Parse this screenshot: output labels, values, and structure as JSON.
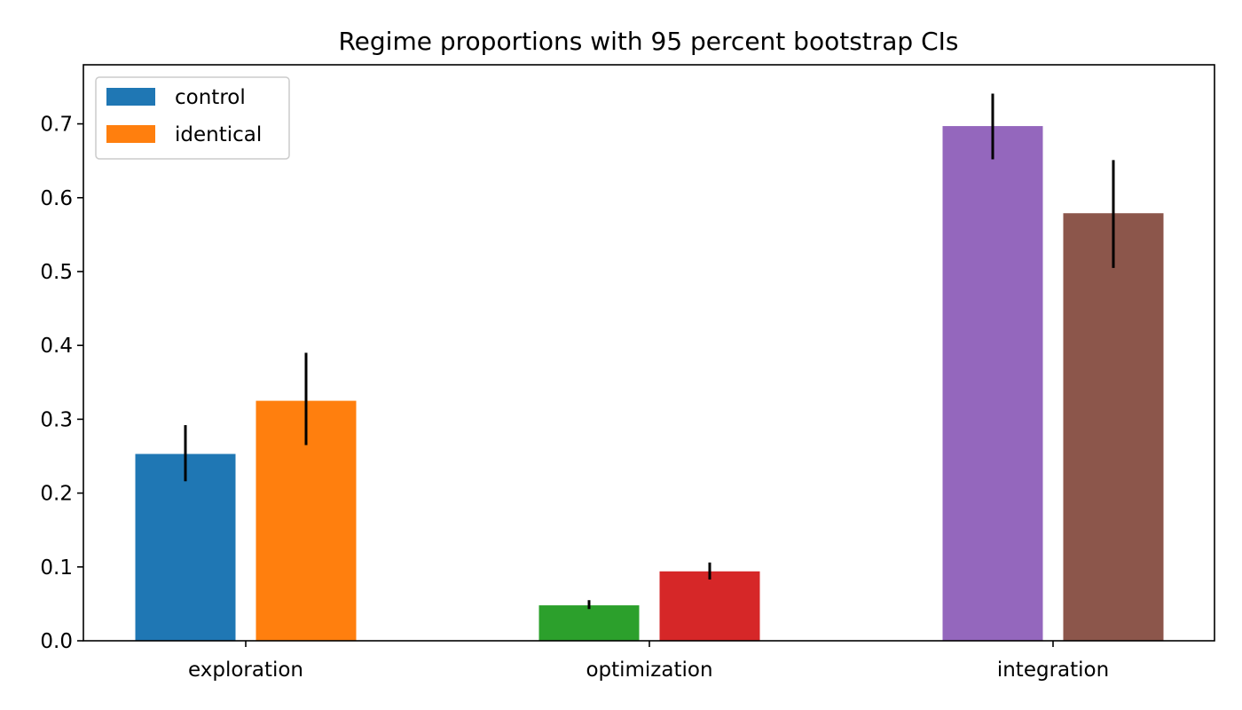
{
  "chart_data": {
    "type": "bar",
    "title": "Regime proportions with 95 percent bootstrap CIs",
    "xlabel": "",
    "ylabel": "",
    "categories": [
      "exploration",
      "optimization",
      "integration"
    ],
    "ylim": [
      0,
      0.78
    ],
    "yticks": [
      {
        "value": 0.0,
        "label": "0.0"
      },
      {
        "value": 0.1,
        "label": "0.1"
      },
      {
        "value": 0.2,
        "label": "0.2"
      },
      {
        "value": 0.3,
        "label": "0.3"
      },
      {
        "value": 0.4,
        "label": "0.4"
      },
      {
        "value": 0.5,
        "label": "0.5"
      },
      {
        "value": 0.6,
        "label": "0.6"
      },
      {
        "value": 0.7,
        "label": "0.7"
      }
    ],
    "grid": false,
    "legend": {
      "placement": "top-left",
      "entries": [
        {
          "label": "control",
          "color": "#1f77b4"
        },
        {
          "label": "identical",
          "color": "#ff7f0e"
        }
      ]
    },
    "series": [
      {
        "name": "control",
        "values": [
          0.253,
          0.048,
          0.697
        ],
        "ci_low": [
          0.216,
          0.043,
          0.652
        ],
        "ci_high": [
          0.292,
          0.055,
          0.741
        ],
        "colors": [
          "#1f77b4",
          "#2ca02c",
          "#9467bd"
        ]
      },
      {
        "name": "identical",
        "values": [
          0.325,
          0.094,
          0.579
        ],
        "ci_low": [
          0.265,
          0.083,
          0.505
        ],
        "ci_high": [
          0.39,
          0.106,
          0.651
        ],
        "colors": [
          "#ff7f0e",
          "#d62728",
          "#8c564b"
        ]
      }
    ]
  }
}
